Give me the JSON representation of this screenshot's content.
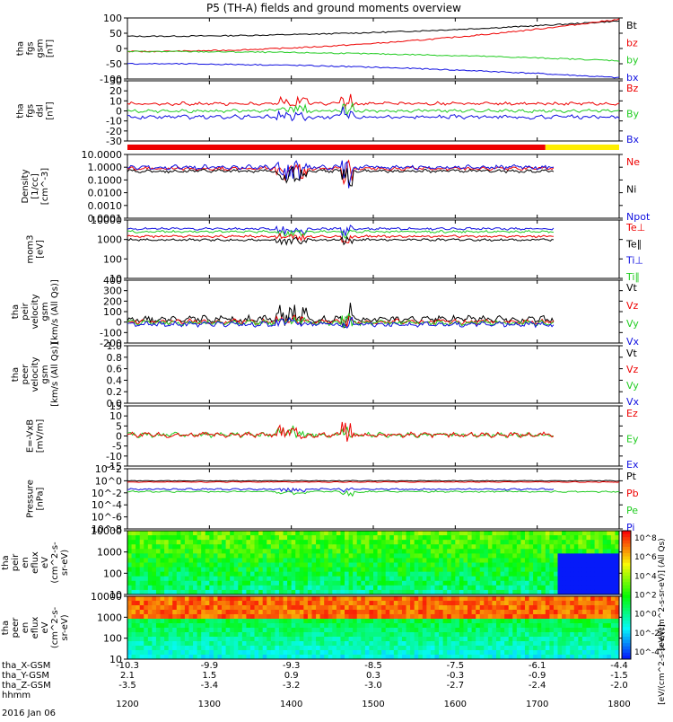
{
  "title": "P5 (TH-A) fields and ground moments overview",
  "colors": {
    "black": "#000000",
    "red": "#ee0000",
    "green": "#22cc22",
    "blue": "#1010e0",
    "yellow": "#ffee00"
  },
  "chart_data": {
    "type": "line",
    "x_time_ticks": [
      "1200",
      "1300",
      "1400",
      "1500",
      "1600",
      "1700",
      "1800"
    ],
    "x_time_range": [
      1200,
      1800
    ],
    "date_label": "2016 Jan 06",
    "orbit_rows": [
      {
        "label": "tha_X-GSM",
        "values": [
          "-10.3",
          "-9.9",
          "-9.3",
          "-8.5",
          "-7.5",
          "-6.1",
          "-4.4"
        ]
      },
      {
        "label": "tha_Y-GSM",
        "values": [
          "2.1",
          "1.5",
          "0.9",
          "0.3",
          "-0.3",
          "-0.9",
          "-1.5"
        ]
      },
      {
        "label": "tha_Z-GSM",
        "values": [
          "-3.5",
          "-3.4",
          "-3.2",
          "-3.0",
          "-2.7",
          "-2.4",
          "-2.0"
        ]
      },
      {
        "label": "hhmm",
        "values": [
          "",
          "",
          "",
          "",
          "",
          "",
          ""
        ]
      }
    ],
    "panels": [
      {
        "id": "p1",
        "ylabel": [
          "tha",
          "fgs",
          "gsm",
          "[nT]"
        ],
        "ticks": [
          "100",
          "50",
          "0",
          "-50",
          "-100"
        ],
        "ylim": [
          -100,
          100
        ],
        "legend": [
          {
            "text": "Bt",
            "color": "black"
          },
          {
            "text": "bz",
            "color": "red"
          },
          {
            "text": "by",
            "color": "green"
          },
          {
            "text": "bx",
            "color": "blue"
          }
        ]
      },
      {
        "id": "p2",
        "ylabel": [
          "tha",
          "fgs",
          "dsl",
          "[nT]"
        ],
        "ticks": [
          "30",
          "20",
          "10",
          "0",
          "-10",
          "-20",
          "-30"
        ],
        "ylim": [
          -30,
          30
        ],
        "legend": [
          {
            "text": "Bz",
            "color": "red"
          },
          {
            "text": "By",
            "color": "green"
          },
          {
            "text": "Bx",
            "color": "blue"
          }
        ]
      },
      {
        "id": "p3",
        "ylabel": [
          "Density",
          "[1/cc]",
          "[cm^-3]"
        ],
        "ticks": [
          "10.0000",
          "1.0000",
          "0.1000",
          "0.0100",
          "0.0010",
          "0.0001"
        ],
        "ylim": [
          0.0001,
          10
        ],
        "log": true,
        "legend": [
          {
            "text": "Ne",
            "color": "red"
          },
          {
            "text": "Ni",
            "color": "black"
          },
          {
            "text": "Npot",
            "color": "blue"
          }
        ]
      },
      {
        "id": "p4",
        "ylabel": [
          "mom3",
          "[eV]"
        ],
        "ticks": [
          "10000",
          "1000",
          "100",
          "10"
        ],
        "ylim": [
          10,
          10000
        ],
        "log": true,
        "legend": [
          {
            "text": "Te⊥",
            "color": "red"
          },
          {
            "text": "Te∥",
            "color": "black"
          },
          {
            "text": "Ti⊥",
            "color": "blue"
          },
          {
            "text": "Ti∥",
            "color": "green"
          }
        ]
      },
      {
        "id": "p5",
        "ylabel": [
          "tha",
          "peir",
          "velocity",
          "gsm",
          "[km/s (All Qs)]"
        ],
        "ticks": [
          "400",
          "300",
          "200",
          "100",
          "0",
          "-100",
          "-200"
        ],
        "ylim": [
          -200,
          400
        ],
        "legend": [
          {
            "text": "Vt",
            "color": "black"
          },
          {
            "text": "Vz",
            "color": "red"
          },
          {
            "text": "Vy",
            "color": "green"
          },
          {
            "text": "Vx",
            "color": "blue"
          }
        ]
      },
      {
        "id": "p6",
        "ylabel": [
          "tha",
          "peer",
          "velocity",
          "gsm",
          "[km/s (All Qs)]"
        ],
        "ticks": [
          "1.0",
          "0.8",
          "0.6",
          "0.4",
          "0.2",
          "0.0"
        ],
        "ylim": [
          0,
          1
        ],
        "legend": [
          {
            "text": "Vt",
            "color": "black"
          },
          {
            "text": "Vz",
            "color": "red"
          },
          {
            "text": "Vy",
            "color": "green"
          },
          {
            "text": "Vx",
            "color": "blue"
          }
        ]
      },
      {
        "id": "p7",
        "ylabel": [
          "E=-VxB",
          "[mV/m]"
        ],
        "ticks": [
          "15",
          "10",
          "5",
          "0",
          "-5",
          "-10",
          "-15"
        ],
        "ylim": [
          -15,
          15
        ],
        "legend": [
          {
            "text": "Ez",
            "color": "red"
          },
          {
            "text": "Ey",
            "color": "green"
          },
          {
            "text": "Ex",
            "color": "blue"
          }
        ]
      },
      {
        "id": "p8",
        "ylabel": [
          "Pressure",
          "[nPa]"
        ],
        "ticks": [
          "10^2",
          "10^0",
          "10^-2",
          "10^-4",
          "10^-6",
          "10^-8"
        ],
        "ylim": [
          1e-08,
          100
        ],
        "log": true,
        "legend": [
          {
            "text": "Pt",
            "color": "black"
          },
          {
            "text": "Pb",
            "color": "red"
          },
          {
            "text": "Pe",
            "color": "green"
          },
          {
            "text": "Pi",
            "color": "blue"
          }
        ]
      },
      {
        "id": "p9",
        "ylabel": [
          "tha",
          "peir",
          "en",
          "eflux",
          "eV",
          "(cm^2-s-",
          "sr-eV)"
        ],
        "ticks": [
          "10000",
          "1000",
          "100",
          "10"
        ],
        "ylim": [
          5,
          30000
        ],
        "log": true,
        "spectrogram": true
      },
      {
        "id": "p10",
        "ylabel": [
          "tha",
          "peer",
          "en",
          "eflux",
          "eV",
          "(cm^2-s-",
          "sr-eV)"
        ],
        "ticks": [
          "10000",
          "1000",
          "100",
          "10"
        ],
        "ylim": [
          5,
          30000
        ],
        "log": true,
        "spectrogram": true
      }
    ],
    "colorbar": {
      "ticks": [
        "10^8",
        "10^6",
        "10^4",
        "10^2",
        "10^0",
        "10^-2",
        "10^-4"
      ],
      "label": "[eV/(cm^2-s-sr-eV)] (All Qs)",
      "label2": "[eV/(cm^2-s-sr-eV)]"
    }
  }
}
